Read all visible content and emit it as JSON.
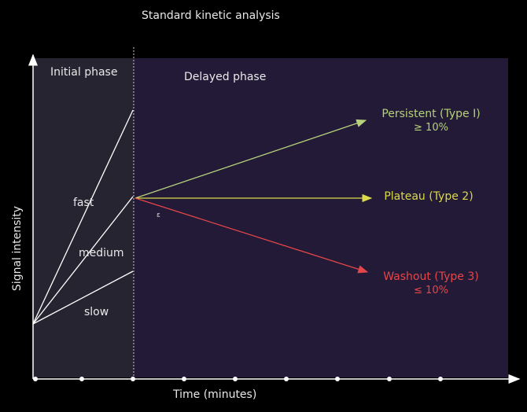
{
  "title": "Standard kinetic analysis",
  "phases": {
    "initial": "Initial phase",
    "delayed": "Delayed phase"
  },
  "axes": {
    "x_label": "Time (minutes)",
    "y_label": "Signal intensity"
  },
  "uptake": {
    "fast": "fast",
    "medium": "medium",
    "slow": "slow"
  },
  "curve_types": {
    "persistent": {
      "label": "Persistent (Type I)",
      "threshold": "≥ 10%",
      "color": "#b6d27a"
    },
    "plateau": {
      "label": "Plateau (Type 2)",
      "color": "#dcd94a"
    },
    "washout": {
      "label": "Washout (Type 3)",
      "threshold": "≤ 10%",
      "color": "#e5464a"
    }
  },
  "small_mark": "ε",
  "colors": {
    "initial_bg": "#262430",
    "delayed_bg": "#221a36",
    "lines": "#ffffff"
  }
}
